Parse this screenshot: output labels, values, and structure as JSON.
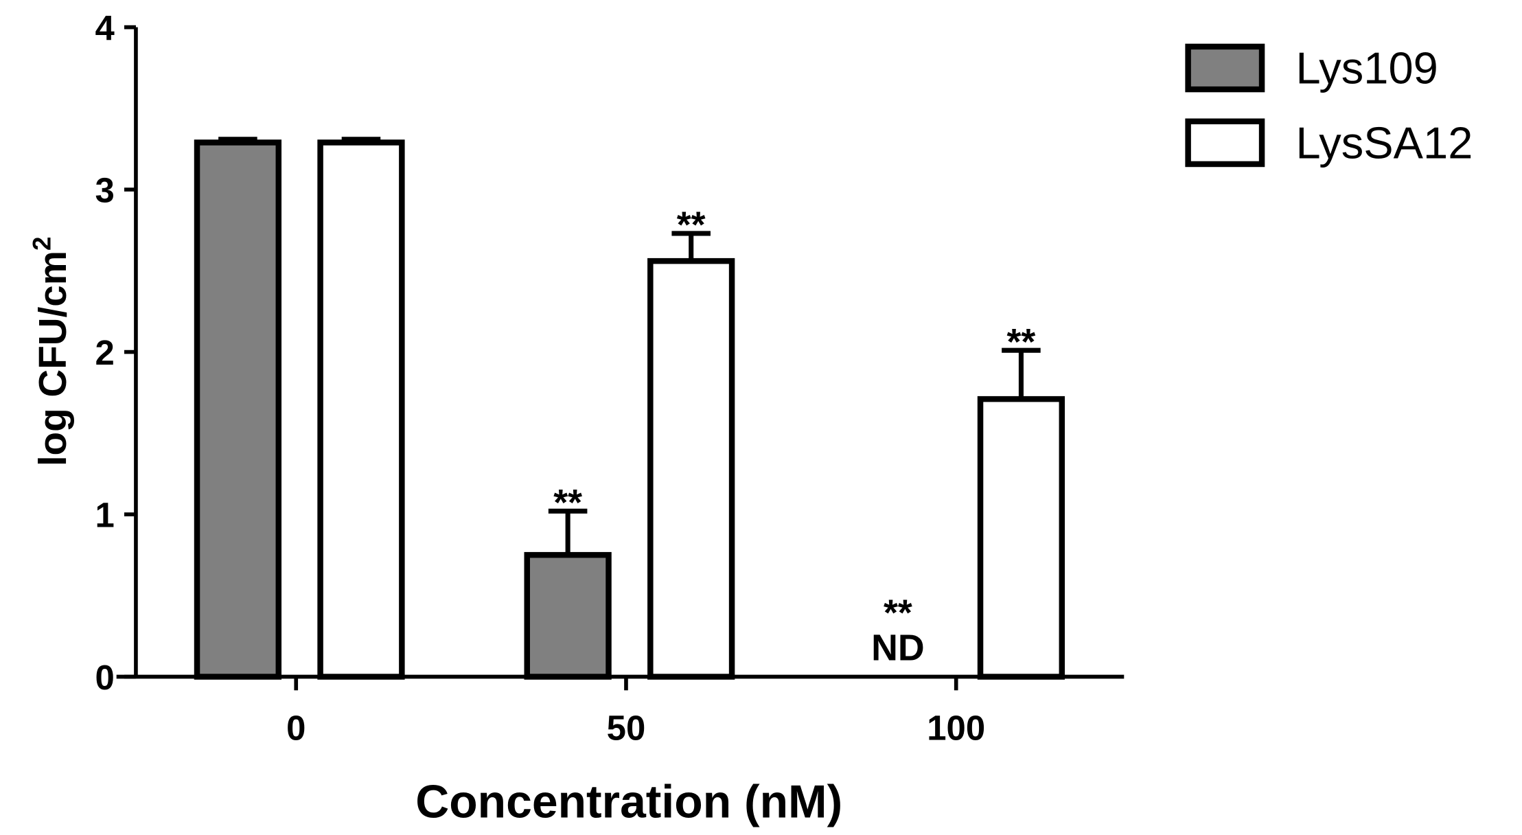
{
  "chart_data": {
    "type": "bar",
    "title": "",
    "xlabel": "Concentration (nM)",
    "ylabel": "log CFU/cm",
    "ylabel_superscript": "2",
    "ylim": [
      0,
      4
    ],
    "yticks": [
      "0",
      "1",
      "2",
      "3",
      "4"
    ],
    "categories": [
      "0",
      "50",
      "100"
    ],
    "series": [
      {
        "name": "Lys109",
        "color": "#808080",
        "values": [
          3.29,
          0.75,
          0
        ],
        "errors": [
          0.02,
          0.27,
          0
        ]
      },
      {
        "name": "LysSA12",
        "color": "#ffffff",
        "values": [
          3.29,
          2.56,
          1.71
        ],
        "errors": [
          0.02,
          0.17,
          0.3
        ]
      }
    ],
    "annotations": [
      {
        "category": "50",
        "series": "Lys109",
        "text": "**"
      },
      {
        "category": "50",
        "series": "LysSA12",
        "text": "**"
      },
      {
        "category": "100",
        "series": "Lys109",
        "text": "**"
      },
      {
        "category": "100",
        "series": "Lys109",
        "text": "ND"
      },
      {
        "category": "100",
        "series": "LysSA12",
        "text": "**"
      }
    ],
    "legend_position": "top-right",
    "grid": false
  }
}
